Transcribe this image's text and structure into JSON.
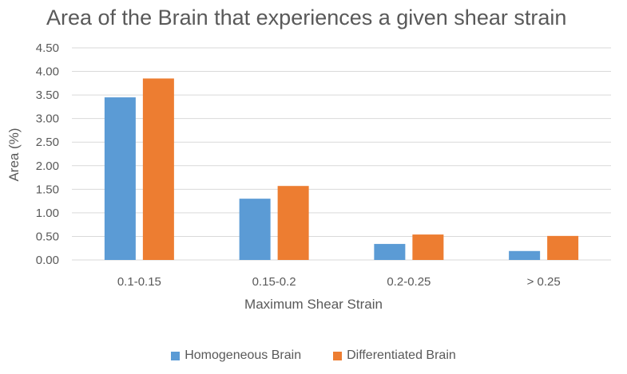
{
  "chart_data": {
    "type": "bar",
    "title": "Area of the Brain that experiences a given shear strain",
    "xlabel": "Maximum Shear Strain",
    "ylabel": "Area (%)",
    "categories": [
      "0.1-0.15",
      "0.15-0.2",
      "0.2-0.25",
      "> 0.25"
    ],
    "ylim": [
      0,
      4.5
    ],
    "yticks": [
      "0.00",
      "0.50",
      "1.00",
      "1.50",
      "2.00",
      "2.50",
      "3.00",
      "3.50",
      "4.00",
      "4.50"
    ],
    "grid": true,
    "legend_position": "bottom",
    "series": [
      {
        "name": "Homogeneous Brain",
        "color": "#5b9bd5",
        "values": [
          3.45,
          1.3,
          0.34,
          0.19
        ]
      },
      {
        "name": "Differentiated Brain",
        "color": "#ed7d31",
        "values": [
          3.85,
          1.57,
          0.54,
          0.51
        ]
      }
    ]
  },
  "colors": {
    "grid": "#d9d9d9",
    "text": "#595959",
    "background": "#ffffff"
  }
}
